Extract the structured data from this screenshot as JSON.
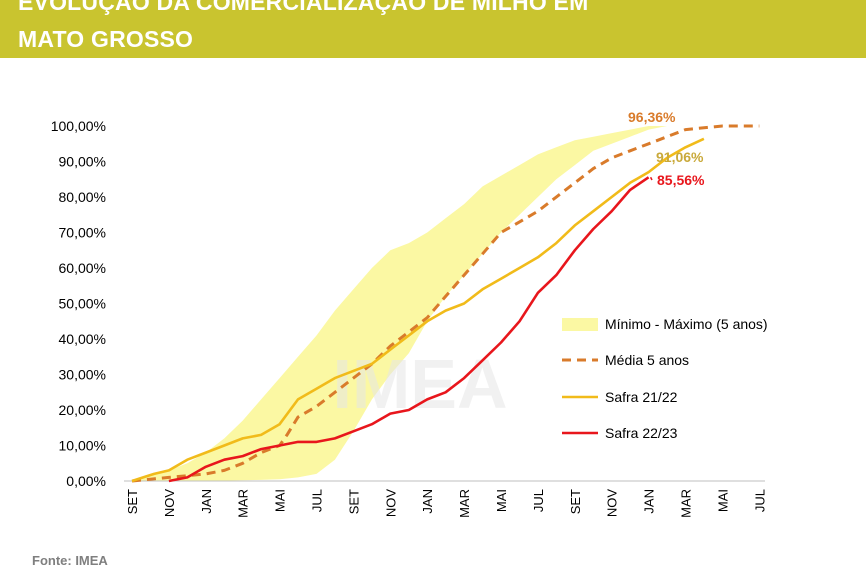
{
  "header": {
    "title_line1": "EVOLUÇÃO DA COMERCIALIZAÇÃO DE MILHO EM",
    "title_line2": "MATO GROSSO",
    "background_color": "#c9c42f"
  },
  "source": "Fonte: IMEA",
  "watermark": "IMEA",
  "chart_data": {
    "type": "area",
    "title": "EVOLUÇÃO DA COMERCIALIZAÇÃO DE MILHO EM MATO GROSSO",
    "x_tick_labels": [
      "SET",
      "NOV",
      "JAN",
      "MAR",
      "MAI",
      "JUL",
      "SET",
      "NOV",
      "JAN",
      "MAR",
      "MAI",
      "JUL",
      "SET",
      "NOV",
      "JAN",
      "MAR",
      "MAI",
      "JUL"
    ],
    "y_tick_labels": [
      "0,00%",
      "10,00%",
      "20,00%",
      "30,00%",
      "40,00%",
      "50,00%",
      "60,00%",
      "70,00%",
      "80,00%",
      "90,00%",
      "100,00%"
    ],
    "ylim": [
      0,
      100
    ],
    "grid": false,
    "legend_position": "right",
    "band": {
      "name": "Mínimo - Máximo (5 anos)",
      "color": "#fbf8a3",
      "upper": [
        [
          0,
          0
        ],
        [
          1,
          3
        ],
        [
          1.5,
          5
        ],
        [
          2,
          8
        ],
        [
          2.5,
          12
        ],
        [
          3,
          17
        ],
        [
          3.5,
          23
        ],
        [
          4,
          29
        ],
        [
          4.5,
          35
        ],
        [
          5,
          41
        ],
        [
          5.5,
          48
        ],
        [
          6,
          54
        ],
        [
          6.5,
          60
        ],
        [
          7,
          65
        ],
        [
          7.5,
          67
        ],
        [
          8,
          70
        ],
        [
          8.5,
          74
        ],
        [
          9,
          78
        ],
        [
          9.5,
          83
        ],
        [
          10,
          86
        ],
        [
          10.5,
          89
        ],
        [
          11,
          92
        ],
        [
          11.5,
          94
        ],
        [
          12,
          96
        ],
        [
          12.5,
          97
        ],
        [
          13,
          98
        ],
        [
          13.5,
          99
        ],
        [
          14,
          100
        ],
        [
          14.5,
          100
        ],
        [
          15,
          100
        ]
      ],
      "lower": [
        [
          15,
          100
        ],
        [
          14.5,
          100
        ],
        [
          14,
          99
        ],
        [
          13.5,
          97
        ],
        [
          13,
          95
        ],
        [
          12.5,
          93
        ],
        [
          12,
          89
        ],
        [
          11.5,
          85
        ],
        [
          11,
          80
        ],
        [
          10.5,
          75
        ],
        [
          10,
          70
        ],
        [
          9.5,
          64
        ],
        [
          9,
          58
        ],
        [
          8.5,
          52
        ],
        [
          8,
          45
        ],
        [
          7.5,
          36
        ],
        [
          7,
          30
        ],
        [
          6.5,
          23
        ],
        [
          6,
          14
        ],
        [
          5.5,
          6
        ],
        [
          5,
          2
        ],
        [
          4.5,
          1
        ],
        [
          4,
          0.5
        ],
        [
          3.5,
          0.3
        ],
        [
          3,
          0.2
        ],
        [
          2.5,
          0.1
        ],
        [
          2,
          0
        ],
        [
          1.5,
          0
        ],
        [
          1,
          0
        ],
        [
          0,
          0
        ]
      ]
    },
    "series": [
      {
        "name": "Média 5 anos",
        "color": "#d97b2b",
        "dashed": true,
        "end_label": "96,36%",
        "points": [
          [
            0,
            0
          ],
          [
            0.5,
            0.5
          ],
          [
            1,
            1
          ],
          [
            1.5,
            1.5
          ],
          [
            2,
            2
          ],
          [
            2.5,
            3
          ],
          [
            3,
            5
          ],
          [
            3.5,
            8
          ],
          [
            4,
            10
          ],
          [
            4.2,
            13
          ],
          [
            4.5,
            18
          ],
          [
            5,
            21
          ],
          [
            5.5,
            25
          ],
          [
            6,
            29
          ],
          [
            6.5,
            33
          ],
          [
            7,
            38
          ],
          [
            7.5,
            42
          ],
          [
            8,
            46
          ],
          [
            8.5,
            52
          ],
          [
            9,
            58
          ],
          [
            9.5,
            64
          ],
          [
            10,
            70
          ],
          [
            10.5,
            73
          ],
          [
            11,
            76
          ],
          [
            11.5,
            80
          ],
          [
            12,
            84
          ],
          [
            12.5,
            88
          ],
          [
            13,
            91
          ],
          [
            13.5,
            93
          ],
          [
            14,
            95
          ],
          [
            14.5,
            97
          ],
          [
            15,
            99
          ],
          [
            16,
            100
          ],
          [
            17,
            100
          ]
        ]
      },
      {
        "name": "Safra 21/22",
        "color": "#f1bb1a",
        "dashed": false,
        "end_label": "91,06%",
        "points": [
          [
            0,
            0
          ],
          [
            0.3,
            1
          ],
          [
            0.6,
            2
          ],
          [
            1,
            3
          ],
          [
            1.5,
            6
          ],
          [
            2,
            8
          ],
          [
            2.5,
            10
          ],
          [
            3,
            12
          ],
          [
            3.5,
            13
          ],
          [
            4,
            16
          ],
          [
            4.5,
            23
          ],
          [
            5,
            26
          ],
          [
            5.5,
            29
          ],
          [
            6,
            31
          ],
          [
            6.5,
            33
          ],
          [
            7,
            37
          ],
          [
            7.5,
            41
          ],
          [
            8,
            45
          ],
          [
            8.5,
            48
          ],
          [
            9,
            50
          ],
          [
            9.5,
            54
          ],
          [
            10,
            57
          ],
          [
            10.5,
            60
          ],
          [
            11,
            63
          ],
          [
            11.5,
            67
          ],
          [
            12,
            72
          ],
          [
            12.5,
            76
          ],
          [
            13,
            80
          ],
          [
            13.5,
            84
          ],
          [
            14,
            87
          ],
          [
            14.5,
            91
          ],
          [
            15,
            94
          ],
          [
            15.5,
            96.4
          ]
        ]
      },
      {
        "name": "Safra 22/23",
        "color": "#e8161c",
        "dashed": false,
        "end_label": "85,56%",
        "points": [
          [
            1,
            0
          ],
          [
            1.5,
            1
          ],
          [
            2,
            4
          ],
          [
            2.5,
            6
          ],
          [
            3,
            7
          ],
          [
            3.5,
            9
          ],
          [
            4,
            10
          ],
          [
            4.5,
            11
          ],
          [
            5,
            11
          ],
          [
            5.5,
            12
          ],
          [
            6,
            14
          ],
          [
            6.5,
            16
          ],
          [
            7,
            19
          ],
          [
            7.5,
            20
          ],
          [
            8,
            23
          ],
          [
            8.5,
            25
          ],
          [
            9,
            29
          ],
          [
            9.5,
            34
          ],
          [
            10,
            39
          ],
          [
            10.5,
            45
          ],
          [
            11,
            53
          ],
          [
            11.5,
            58
          ],
          [
            12,
            65
          ],
          [
            12.5,
            71
          ],
          [
            13,
            76
          ],
          [
            13.5,
            82
          ],
          [
            14,
            85.56
          ]
        ]
      }
    ]
  }
}
